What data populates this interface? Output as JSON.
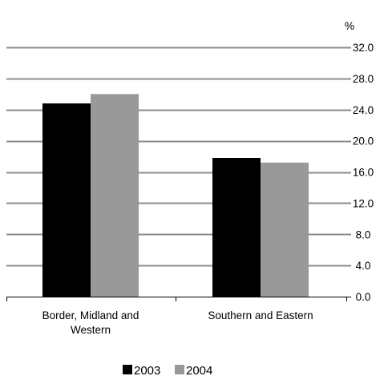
{
  "chart_data": {
    "type": "bar",
    "categories": [
      "Border, Midland and Western",
      "Southern and Eastern"
    ],
    "category_lines": [
      [
        "Border, Midland and",
        "Western"
      ],
      [
        "Southern and Eastern"
      ]
    ],
    "series": [
      {
        "name": "2003",
        "values": [
          24.8,
          17.8
        ],
        "color": "#000000"
      },
      {
        "name": "2004",
        "values": [
          26.0,
          17.2
        ],
        "color": "#999999"
      }
    ],
    "ylim": [
      0,
      32
    ],
    "yticks": [
      0,
      4,
      8,
      12,
      16,
      20,
      24,
      28,
      32
    ],
    "ytick_labels": [
      "0.0",
      "4.0",
      "8.0",
      "12.0",
      "16.0",
      "20.0",
      "24.0",
      "28.0",
      "32.0"
    ],
    "y_unit_label": "%",
    "y_axis_side": "right",
    "grid": true,
    "gridline_color": "#8c8c8c",
    "legend_position": "bottom-center"
  }
}
